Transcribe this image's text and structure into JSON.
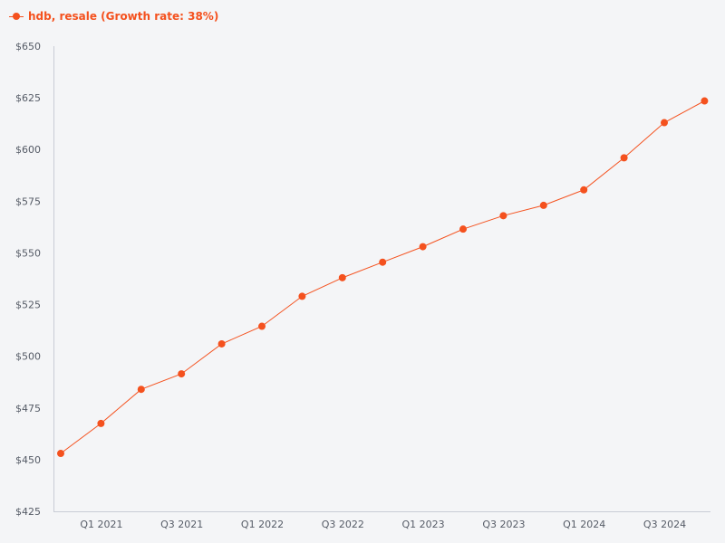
{
  "chart_data": {
    "type": "line",
    "title": "",
    "xlabel": "",
    "ylabel": "",
    "ylim": [
      425,
      650
    ],
    "yticks": [
      425,
      450,
      475,
      500,
      525,
      550,
      575,
      600,
      625,
      650
    ],
    "ytick_labels": [
      "$425",
      "$450",
      "$475",
      "$500",
      "$525",
      "$550",
      "$575",
      "$600",
      "$625",
      "$650"
    ],
    "categories": [
      "Q4 2020",
      "Q1 2021",
      "Q2 2021",
      "Q3 2021",
      "Q4 2021",
      "Q1 2022",
      "Q2 2022",
      "Q3 2022",
      "Q4 2022",
      "Q1 2023",
      "Q2 2023",
      "Q3 2023",
      "Q4 2023",
      "Q1 2024",
      "Q2 2024",
      "Q3 2024",
      "Q4 2024"
    ],
    "visible_xtick_labels": [
      "Q1 2021",
      "Q3 2021",
      "Q1 2022",
      "Q3 2022",
      "Q1 2023",
      "Q3 2023",
      "Q1 2024",
      "Q3 2024"
    ],
    "legend_position": "top-left",
    "grid": false,
    "series": [
      {
        "name": "hdb, resale",
        "legend_label": "hdb, resale (Growth rate: 38%)",
        "color": "#f4511e",
        "values": [
          453,
          467.5,
          484,
          491.5,
          506,
          514.5,
          529,
          538,
          545.5,
          553,
          561.5,
          568,
          573,
          580.5,
          596,
          613,
          623.5
        ]
      }
    ]
  },
  "colors": {
    "background": "#f4f5f7",
    "axis": "#c9ccd6",
    "tick_text": "#555b66"
  }
}
